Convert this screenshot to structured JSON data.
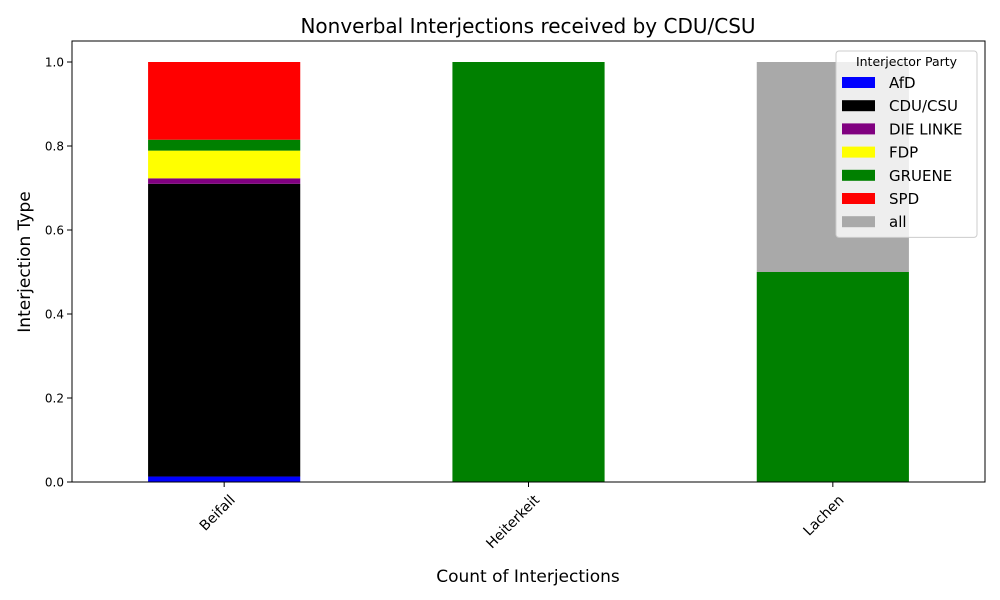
{
  "chart_data": {
    "type": "bar",
    "stacked": true,
    "title": "Nonverbal Interjections received by CDU/CSU",
    "xlabel": "Count of Interjections",
    "ylabel": "Interjection Type",
    "categories": [
      "Beifall",
      "Heiterkeit",
      "Lachen"
    ],
    "ylim": [
      0,
      1.05
    ],
    "yticks": [
      0.0,
      0.2,
      0.4,
      0.6,
      0.8,
      1.0
    ],
    "ytick_labels": [
      "0.0",
      "0.2",
      "0.4",
      "0.6",
      "0.8",
      "1.0"
    ],
    "grid": false,
    "legend": {
      "title": "Interjector Party",
      "position": "top-right"
    },
    "series": [
      {
        "name": "AfD",
        "color": "#0000ff",
        "values": [
          0.013,
          0.0,
          0.0
        ]
      },
      {
        "name": "CDU/CSU",
        "color": "#000000",
        "values": [
          0.697,
          0.0,
          0.0
        ]
      },
      {
        "name": "DIE LINKE",
        "color": "#800080",
        "values": [
          0.013,
          0.0,
          0.0
        ]
      },
      {
        "name": "FDP",
        "color": "#ffff00",
        "values": [
          0.066,
          0.0,
          0.0
        ]
      },
      {
        "name": "GRUENE",
        "color": "#008000",
        "values": [
          0.026,
          1.0,
          0.5
        ]
      },
      {
        "name": "SPD",
        "color": "#ff0000",
        "values": [
          0.185,
          0.0,
          0.0
        ]
      },
      {
        "name": "all",
        "color": "#a9a9a9",
        "values": [
          0.0,
          0.0,
          0.5
        ]
      }
    ]
  }
}
